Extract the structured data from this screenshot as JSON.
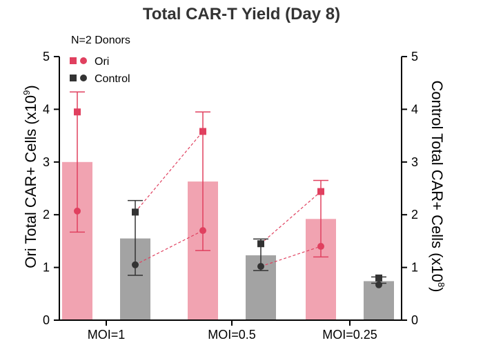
{
  "chart_data": {
    "type": "bar",
    "title": "Total CAR-T Yield (Day 8)",
    "annotation": "N=2 Donors",
    "categories": [
      "MOI=1",
      "MOI=0.5",
      "MOI=0.25"
    ],
    "ylabel_left": {
      "text": "Ori Total CAR+ Cells (x10",
      "exp": "9",
      "close": ")"
    },
    "ylabel_right": {
      "text": "Control Total CAR+ Cells (x10",
      "exp": "8",
      "close": ")"
    },
    "ylim_left": [
      0,
      5
    ],
    "ylim_right": [
      0,
      5
    ],
    "yticks": [
      "0",
      "1",
      "2",
      "3",
      "4",
      "5"
    ],
    "series": [
      {
        "name": "Ori",
        "axis": "left",
        "color": "#f1a3b1",
        "marker_color": "#e0405f",
        "means": [
          3.0,
          2.63,
          1.92
        ],
        "err_low": [
          1.67,
          1.32,
          1.2
        ],
        "err_high": [
          4.33,
          3.95,
          2.65
        ],
        "donor_square": [
          3.95,
          3.58,
          2.44
        ],
        "donor_circle": [
          2.07,
          1.7,
          1.4
        ]
      },
      {
        "name": "Control",
        "axis": "right",
        "color": "#a3a3a3",
        "marker_color": "#333333",
        "means": [
          1.55,
          1.23,
          0.74
        ],
        "err_low": [
          0.85,
          0.94,
          0.7
        ],
        "err_high": [
          2.27,
          1.54,
          0.82
        ],
        "donor_square": [
          2.05,
          1.45,
          0.8
        ],
        "donor_circle": [
          1.05,
          1.02,
          0.67
        ]
      }
    ],
    "donor_lines": {
      "color": "#e0405f",
      "style": "dashed"
    },
    "grid": false,
    "legend": "top-left"
  }
}
